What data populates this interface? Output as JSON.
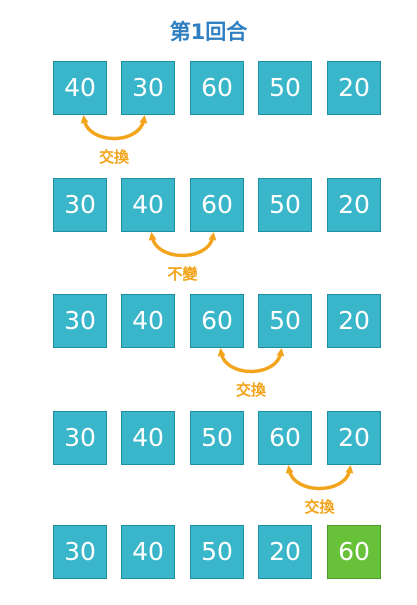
{
  "title": "第1回合",
  "colors": {
    "title": "#2f7fc2",
    "box": "#39b6c9",
    "box_border": "#1f8f9f",
    "sorted": "#67c23a",
    "sorted_border": "#4c9a28",
    "arrow": "#f2a51c"
  },
  "rows": [
    {
      "values": [
        "40",
        "30",
        "60",
        "50",
        "20"
      ],
      "sorted": [
        false,
        false,
        false,
        false,
        false
      ]
    },
    {
      "values": [
        "30",
        "40",
        "60",
        "50",
        "20"
      ],
      "sorted": [
        false,
        false,
        false,
        false,
        false
      ]
    },
    {
      "values": [
        "30",
        "40",
        "60",
        "50",
        "20"
      ],
      "sorted": [
        false,
        false,
        false,
        false,
        false
      ]
    },
    {
      "values": [
        "30",
        "40",
        "50",
        "60",
        "20"
      ],
      "sorted": [
        false,
        false,
        false,
        false,
        false
      ]
    },
    {
      "values": [
        "30",
        "40",
        "50",
        "20",
        "60"
      ],
      "sorted": [
        false,
        false,
        false,
        false,
        true
      ]
    }
  ],
  "comparisons": [
    {
      "label": "交換",
      "pair": [
        0,
        1
      ]
    },
    {
      "label": "不變",
      "pair": [
        1,
        2
      ]
    },
    {
      "label": "交換",
      "pair": [
        2,
        3
      ]
    },
    {
      "label": "交換",
      "pair": [
        3,
        4
      ]
    }
  ]
}
